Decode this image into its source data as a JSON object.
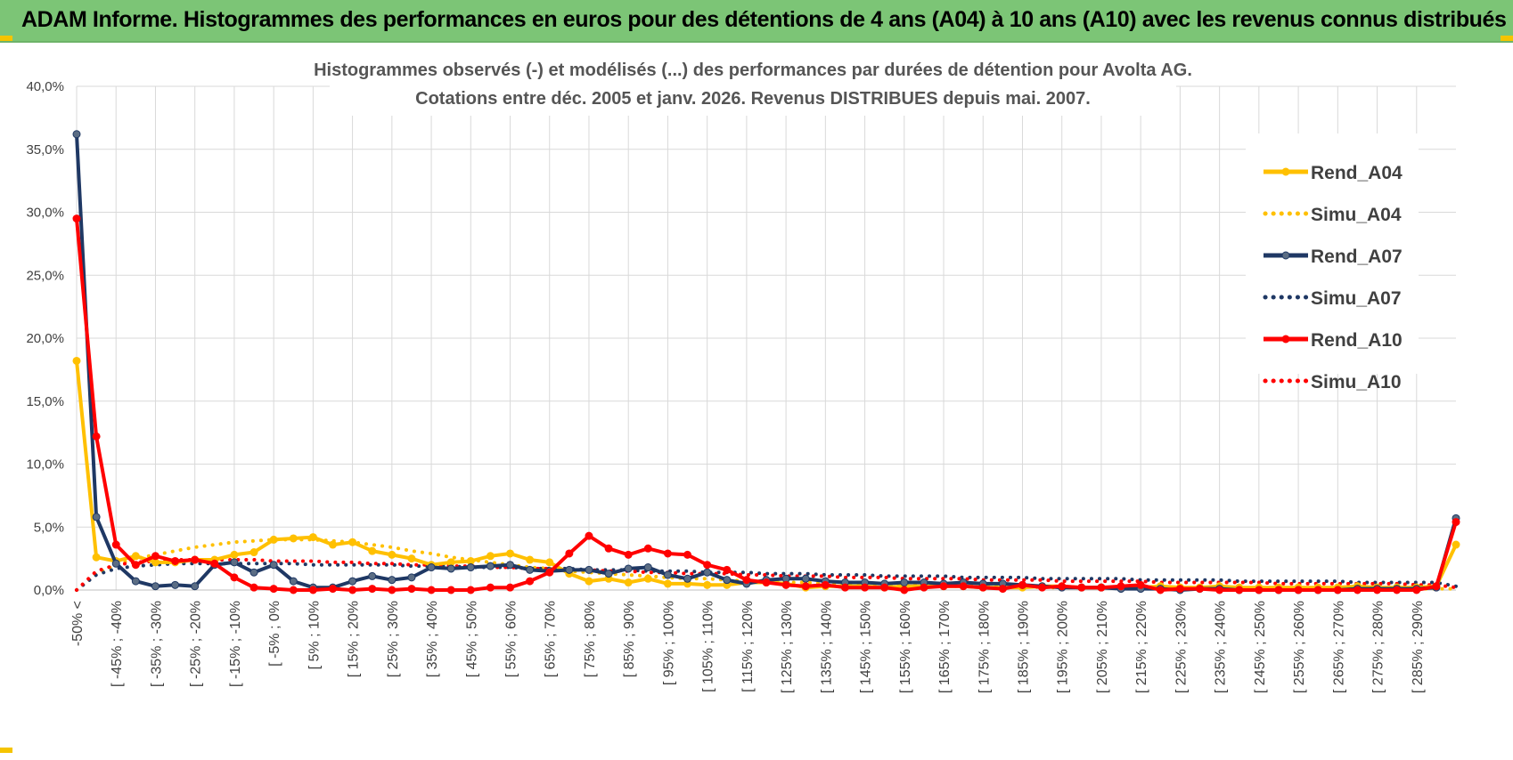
{
  "banner": {
    "title": "ADAM Informe. Histogrammes des performances en euros pour des détentions de 4 ans (A04) à 10 ans (A10) avec les revenus connus distribués"
  },
  "colors": {
    "banner_bg": "#7cc576",
    "a04": "#ffc000",
    "a07": "#1f3864",
    "a07_marker": "#5b6d84",
    "a10": "#ff0000",
    "grid": "#d9d9d9"
  },
  "chart_data": {
    "type": "line",
    "title": [
      "Histogrammes observés (-) et modélisés (...) des performances par durées de détention pour Avolta AG.",
      "Cotations entre déc. 2005 et janv. 2026. Revenus DISTRIBUES depuis mai. 2007."
    ],
    "xlabel": "",
    "ylabel": "",
    "ylim": [
      0,
      40
    ],
    "y_ticks": [
      "0,0%",
      "5,0%",
      "10,0%",
      "15,0%",
      "20,0%",
      "25,0%",
      "30,0%",
      "35,0%",
      "40,0%"
    ],
    "legend_position": "right",
    "categories": [
      "-50% <",
      "[ -50% ; -45%",
      "[ -45% ; -40%",
      "[ -40% ; -35%",
      "[ -35% ; -30%",
      "[ -30% ; -25%",
      "[ -25% ; -20%",
      "[ -20% ; -15%",
      "[ -15% ; -10%",
      "[ -10% ; -5%",
      "[ -5% ; 0%",
      "[ 0% ; 5%",
      "[ 5% ; 10%",
      "[ 10% ; 15%",
      "[ 15% ; 20%",
      "[ 20% ; 25%",
      "[ 25% ; 30%",
      "[ 30% ; 35%",
      "[ 35% ; 40%",
      "[ 40% ; 45%",
      "[ 45% ; 50%",
      "[ 50% ; 55%",
      "[ 55% ; 60%",
      "[ 60% ; 65%",
      "[ 65% ; 70%",
      "[ 70% ; 75%",
      "[ 75% ; 80%",
      "[ 80% ; 85%",
      "[ 85% ; 90%",
      "[ 90% ; 95%",
      "[ 95% ; 100%",
      "[ 100% ; 105%",
      "[ 105% ; 110%",
      "[ 110% ; 115%",
      "[ 115% ; 120%",
      "[ 120% ; 125%",
      "[ 125% ; 130%",
      "[ 130% ; 135%",
      "[ 135% ; 140%",
      "[ 140% ; 145%",
      "[ 145% ; 150%",
      "[ 150% ; 155%",
      "[ 155% ; 160%",
      "[ 160% ; 165%",
      "[ 165% ; 170%",
      "[ 170% ; 175%",
      "[ 175% ; 180%",
      "[ 180% ; 185%",
      "[ 185% ; 190%",
      "[ 190% ; 195%",
      "[ 195% ; 200%",
      "[ 200% ; 205%",
      "[ 205% ; 210%",
      "[ 210% ; 215%",
      "[ 215% ; 220%",
      "[ 220% ; 225%",
      "[ 225% ; 230%",
      "[ 230% ; 235%",
      "[ 235% ; 240%",
      "[ 240% ; 245%",
      "[ 245% ; 250%",
      "[ 250% ; 255%",
      "[ 255% ; 260%",
      "[ 260% ; 265%",
      "[ 265% ; 270%",
      "[ 270% ; 275%",
      "[ 275% ; 280%",
      "[ 280% ; 285%",
      "[ 285% ; 290%",
      "[ 290% ; 295%",
      "295% >"
    ],
    "x_ticks_shown": [
      "-50% <",
      "[ -45% ; -40%",
      "[ -35% ; -30%",
      "[ -25% ; -20%",
      "[ -15% ; -10%",
      "[ -5% ; 0%",
      "[ 5% ; 10%",
      "[ 15% ; 20%",
      "[ 25% ; 30%",
      "[ 35% ; 40%",
      "[ 45% ; 50%",
      "[ 55% ; 60%",
      "[ 65% ; 70%",
      "[ 75% ; 80%",
      "[ 85% ; 90%",
      "[ 95% ; 100%",
      "[ 105% ; 110%",
      "[ 115% ; 120%",
      "[ 125% ; 130%",
      "[ 135% ; 140%",
      "[ 145% ; 150%",
      "[ 155% ; 160%",
      "[ 165% ; 170%",
      "[ 175% ; 180%",
      "[ 185% ; 190%",
      "[ 195% ; 200%",
      "[ 205% ; 210%",
      "[ 215% ; 220%",
      "[ 225% ; 230%",
      "[ 235% ; 240%",
      "[ 245% ; 250%",
      "[ 255% ; 260%",
      "[ 265% ; 270%",
      "[ 275% ; 280%",
      "[ 285% ; 290%"
    ],
    "series": [
      {
        "name": "Rend_A04",
        "style": "solid",
        "color": "#ffc000",
        "values": [
          18.2,
          2.6,
          2.3,
          2.7,
          2.2,
          2.2,
          2.4,
          2.4,
          2.8,
          3.0,
          4.0,
          4.1,
          4.2,
          3.6,
          3.8,
          3.1,
          2.8,
          2.5,
          2.0,
          2.2,
          2.3,
          2.7,
          2.9,
          2.4,
          2.2,
          1.3,
          0.7,
          0.9,
          0.6,
          0.9,
          0.5,
          0.5,
          0.4,
          0.4,
          0.6,
          0.6,
          0.5,
          0.2,
          0.3,
          0.3,
          0.3,
          0.2,
          0.3,
          0.3,
          0.3,
          0.3,
          0.2,
          0.2,
          0.2,
          0.3,
          0.3,
          0.2,
          0.2,
          0.2,
          0.2,
          0.3,
          0.2,
          0.2,
          0.3,
          0.2,
          0.2,
          0.2,
          0.2,
          0.2,
          0.2,
          0.3,
          0.2,
          0.2,
          0.2,
          0.3,
          3.6
        ]
      },
      {
        "name": "Simu_A04",
        "style": "dotted",
        "color": "#ffc000",
        "values": [
          0.0,
          1.3,
          2.0,
          2.5,
          2.8,
          3.1,
          3.4,
          3.6,
          3.8,
          3.9,
          4.0,
          4.0,
          4.0,
          3.9,
          3.8,
          3.6,
          3.4,
          3.1,
          2.9,
          2.6,
          2.4,
          2.2,
          2.0,
          1.8,
          1.7,
          1.5,
          1.4,
          1.3,
          1.2,
          1.1,
          1.0,
          0.9,
          0.9,
          0.8,
          0.7,
          0.7,
          0.6,
          0.6,
          0.5,
          0.5,
          0.5,
          0.4,
          0.4,
          0.4,
          0.3,
          0.3,
          0.3,
          0.3,
          0.3,
          0.2,
          0.2,
          0.2,
          0.2,
          0.2,
          0.2,
          0.2,
          0.2,
          0.2,
          0.2,
          0.1,
          0.1,
          0.1,
          0.1,
          0.1,
          0.1,
          0.1,
          0.1,
          0.1,
          0.1,
          0.1,
          0.1
        ]
      },
      {
        "name": "Rend_A07",
        "style": "solid",
        "color": "#1f3864",
        "values": [
          36.2,
          5.8,
          2.1,
          0.7,
          0.3,
          0.4,
          0.3,
          2.0,
          2.2,
          1.4,
          2.0,
          0.7,
          0.2,
          0.2,
          0.7,
          1.1,
          0.8,
          1.0,
          1.8,
          1.7,
          1.8,
          1.9,
          2.0,
          1.6,
          1.5,
          1.6,
          1.6,
          1.3,
          1.7,
          1.8,
          1.2,
          0.9,
          1.4,
          0.8,
          0.5,
          0.8,
          0.9,
          0.9,
          0.7,
          0.6,
          0.6,
          0.5,
          0.6,
          0.6,
          0.5,
          0.6,
          0.5,
          0.5,
          0.4,
          0.3,
          0.2,
          0.2,
          0.2,
          0.1,
          0.1,
          0.1,
          0.0,
          0.1,
          0.1,
          0.0,
          0.0,
          0.0,
          0.0,
          0.0,
          0.0,
          0.1,
          0.1,
          0.1,
          0.1,
          0.2,
          5.7
        ]
      },
      {
        "name": "Simu_A07",
        "style": "dotted",
        "color": "#1f3864",
        "values": [
          0.0,
          1.2,
          1.7,
          1.9,
          2.0,
          2.1,
          2.1,
          2.1,
          2.1,
          2.1,
          2.1,
          2.1,
          2.0,
          2.0,
          2.0,
          2.0,
          2.0,
          1.9,
          1.9,
          1.9,
          1.8,
          1.8,
          1.8,
          1.7,
          1.7,
          1.7,
          1.6,
          1.6,
          1.6,
          1.5,
          1.5,
          1.5,
          1.4,
          1.4,
          1.4,
          1.3,
          1.3,
          1.3,
          1.2,
          1.2,
          1.2,
          1.1,
          1.1,
          1.1,
          1.1,
          1.0,
          1.0,
          1.0,
          1.0,
          0.9,
          0.9,
          0.9,
          0.9,
          0.9,
          0.8,
          0.8,
          0.8,
          0.8,
          0.8,
          0.7,
          0.7,
          0.7,
          0.7,
          0.7,
          0.7,
          0.6,
          0.6,
          0.6,
          0.6,
          0.6,
          0.3
        ]
      },
      {
        "name": "Rend_A10",
        "style": "solid",
        "color": "#ff0000",
        "values": [
          29.5,
          12.2,
          3.6,
          2.0,
          2.7,
          2.3,
          2.4,
          2.1,
          1.0,
          0.2,
          0.1,
          0.0,
          0.0,
          0.1,
          0.0,
          0.1,
          0.0,
          0.1,
          0.0,
          0.0,
          0.0,
          0.2,
          0.2,
          0.7,
          1.4,
          2.9,
          4.3,
          3.3,
          2.8,
          3.3,
          2.9,
          2.8,
          2.0,
          1.6,
          0.8,
          0.6,
          0.4,
          0.3,
          0.4,
          0.2,
          0.2,
          0.2,
          0.0,
          0.2,
          0.3,
          0.3,
          0.2,
          0.1,
          0.4,
          0.2,
          0.3,
          0.2,
          0.2,
          0.3,
          0.4,
          0.0,
          0.1,
          0.1,
          0.0,
          0.0,
          0.0,
          0.0,
          0.0,
          0.0,
          0.0,
          0.0,
          0.0,
          0.0,
          0.0,
          0.3,
          5.4
        ]
      },
      {
        "name": "Simu_A10",
        "style": "dotted",
        "color": "#ff0000",
        "values": [
          0.0,
          1.5,
          2.0,
          2.2,
          2.3,
          2.4,
          2.4,
          2.4,
          2.4,
          2.4,
          2.3,
          2.3,
          2.3,
          2.2,
          2.2,
          2.1,
          2.1,
          2.0,
          2.0,
          1.9,
          1.9,
          1.8,
          1.8,
          1.7,
          1.7,
          1.6,
          1.6,
          1.5,
          1.5,
          1.4,
          1.4,
          1.3,
          1.3,
          1.3,
          1.2,
          1.2,
          1.1,
          1.1,
          1.1,
          1.0,
          1.0,
          1.0,
          0.9,
          0.9,
          0.9,
          0.9,
          0.8,
          0.8,
          0.8,
          0.8,
          0.7,
          0.7,
          0.7,
          0.7,
          0.7,
          0.6,
          0.6,
          0.6,
          0.6,
          0.6,
          0.6,
          0.5,
          0.5,
          0.5,
          0.5,
          0.5,
          0.5,
          0.5,
          0.4,
          0.4,
          0.2
        ]
      }
    ]
  }
}
